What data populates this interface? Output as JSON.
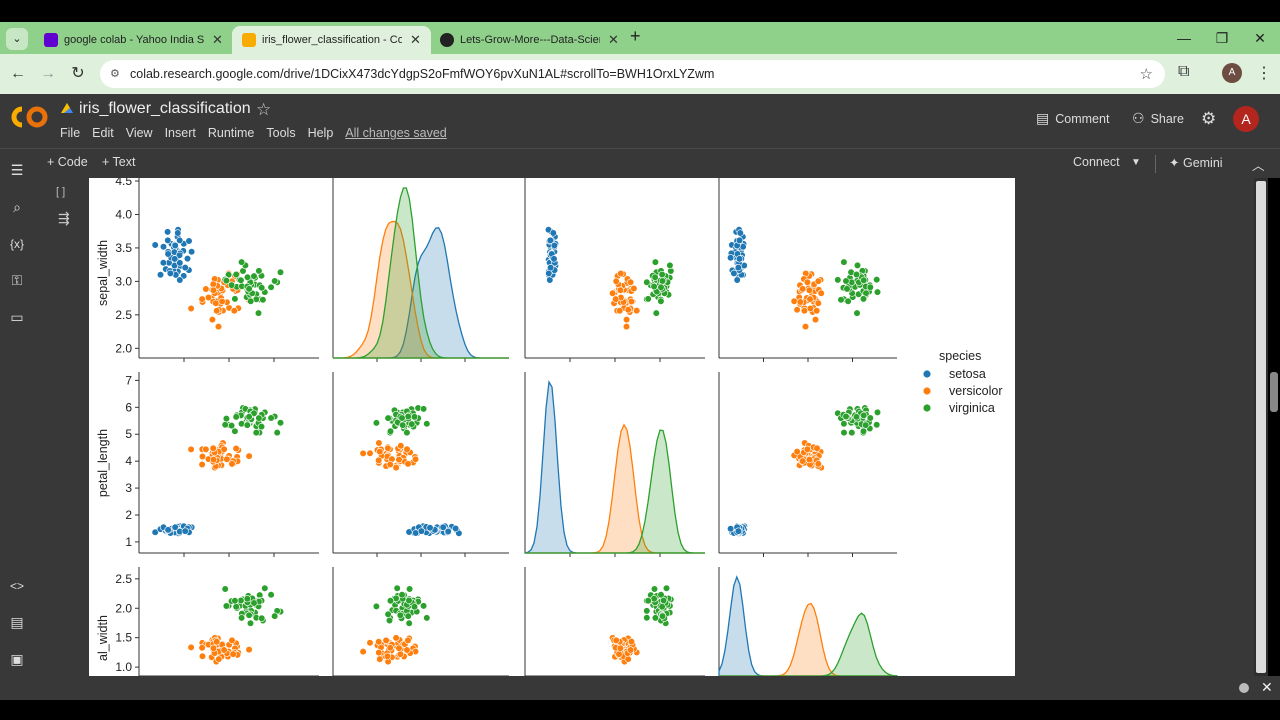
{
  "browser": {
    "tabs": [
      {
        "title": "google colab - Yahoo India Sea",
        "favicon_color": "#5f01d1",
        "favicon": "y!"
      },
      {
        "title": "iris_flower_classification - Colab",
        "favicon_color": "#f9ab00",
        "favicon": "CO"
      },
      {
        "title": "Lets-Grow-More---Data-Scienc",
        "favicon_color": "#222222",
        "favicon": "gh"
      }
    ],
    "url": "colab.research.google.com/drive/1DCixX473dcYdgpS2oFmfWOY6pvXuN1AL#scrollTo=BWH1OrxLYZwm",
    "profile_letter": "A"
  },
  "colab": {
    "logo": "CO",
    "notebook_title": "iris_flower_classification",
    "menus": [
      "File",
      "Edit",
      "View",
      "Insert",
      "Runtime",
      "Tools",
      "Help"
    ],
    "save_status": "All changes saved",
    "comment_label": "Comment",
    "share_label": "Share",
    "avatar_letter": "A",
    "add_code_label": "+ Code",
    "add_text_label": "+ Text",
    "connect_label": "Connect",
    "gemini_label": "Gemini",
    "cell_bracket": "[ ]"
  },
  "chart_data": {
    "type": "scatter",
    "title": "",
    "legend": {
      "title": "species",
      "placement": "right",
      "entries": [
        "setosa",
        "versicolor",
        "virginica"
      ]
    },
    "colors": {
      "setosa": "#1f77b4",
      "versicolor": "#ff7f0e",
      "virginica": "#2ca02c"
    },
    "row_labels": [
      "sepal_width",
      "petal_length",
      "al_width"
    ],
    "ticks": {
      "sepal_width": [
        "2.0",
        "2.5",
        "3.0",
        "3.5",
        "4.0",
        "4.5"
      ],
      "petal_length": [
        "1",
        "2",
        "3",
        "4",
        "5",
        "6",
        "7"
      ],
      "petal_width": [
        "1.0",
        "1.5",
        "2.0",
        "2.5"
      ]
    },
    "ylim": {
      "sepal_width": [
        1.9,
        4.5
      ],
      "petal_length": [
        0.7,
        7.2
      ],
      "petal_width": [
        0.9,
        2.65
      ]
    }
  }
}
